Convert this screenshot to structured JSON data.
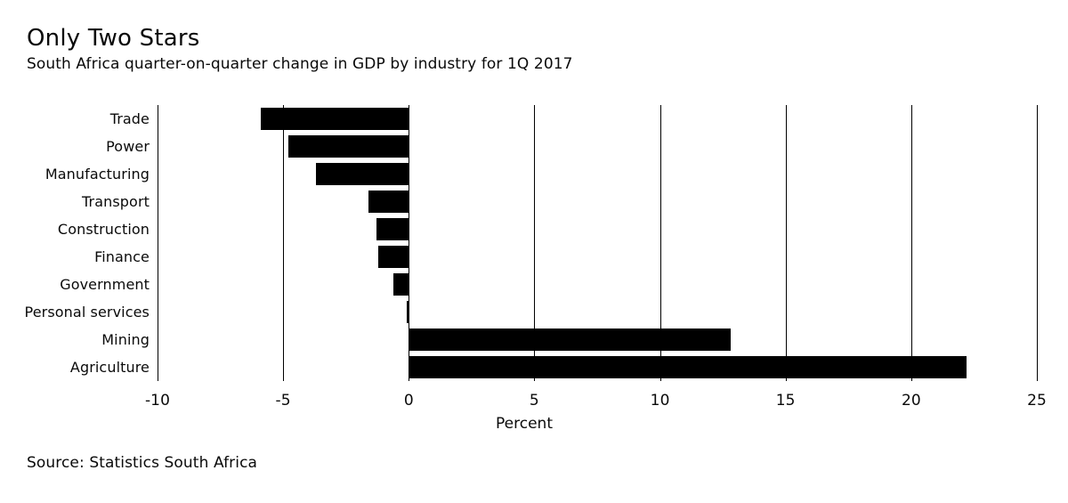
{
  "chart_data": {
    "type": "bar",
    "orientation": "horizontal",
    "title": "Only Two Stars",
    "subtitle": "South Africa quarter-on-quarter change in GDP by industry for 1Q 2017",
    "categories": [
      "Trade",
      "Power",
      "Manufacturing",
      "Transport",
      "Construction",
      "Finance",
      "Government",
      "Personal services",
      "Mining",
      "Agriculture"
    ],
    "values": [
      -5.9,
      -4.8,
      -3.7,
      -1.6,
      -1.3,
      -1.2,
      -0.6,
      -0.1,
      12.8,
      22.2
    ],
    "xlabel": "Percent",
    "xticks": [
      -10,
      -5,
      0,
      5,
      10,
      15,
      20,
      25
    ],
    "xlim": [
      -10,
      25
    ],
    "grid": true,
    "legend_position": "none",
    "bar_color": "#000000",
    "grid_color": "#000000",
    "text_color": "#0a0a0a",
    "background_color": "#ffffff",
    "source": "Source: Statistics South Africa"
  }
}
